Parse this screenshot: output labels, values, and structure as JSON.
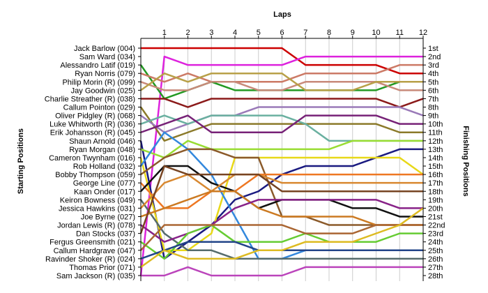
{
  "chart_data": {
    "type": "line",
    "title": "Laps",
    "ylabel_left": "Starting Positions",
    "ylabel_right": "Finishing Positions",
    "x": [
      0,
      1,
      2,
      3,
      4,
      5,
      6,
      7,
      8,
      9,
      10,
      11,
      12
    ],
    "x_tick_labels": [
      "1",
      "2",
      "3",
      "4",
      "5",
      "6",
      "7",
      "8",
      "9",
      "10",
      "11",
      "12"
    ],
    "ylim": [
      1,
      28
    ],
    "grid": "vertical",
    "drivers": [
      "Jack Barlow (004)",
      "Sam Ward (034)",
      "Alessandro Latif (019)",
      "Ryan Norris (079)",
      "Philip Morin (R) (099)",
      "Jay Goodwin (025)",
      "Charlie Streather (R) (038)",
      "Callum Pointon (029)",
      "Oliver Pidgley (R) (068)",
      "Luke Whitworth (R) (036)",
      "Erik Johansson (R) (045)",
      "Shaun Arnold (046)",
      "Ryan Morgan (048)",
      "Cameron Twynham (016)",
      "Rob Holland (032)",
      "Bobby Thompson (059)",
      "George Line (077)",
      "Kaan Onder (017)",
      "Keiron Bowness (049)",
      "Jessica Hawkins (031)",
      "Joe Byrne (027)",
      "Jordan Lewis (R) (078)",
      "Dan Stocks (037)",
      "Fergus Greensmith (021)",
      "Callum Hardgrave (047)",
      "Ravinder Shoker (R) (024)",
      "Thomas Prior (071)",
      "Sam Jackson (R) (035)"
    ],
    "finishing": [
      "1st",
      "2nd",
      "3rd",
      "4th",
      "5th",
      "6th",
      "7th",
      "8th",
      "9th",
      "10th",
      "11th",
      "12th",
      "13th",
      "14th",
      "15th",
      "16th",
      "17th",
      "18th",
      "19th",
      "20th",
      "21st",
      "22nd",
      "23rd",
      "24th",
      "25th",
      "26th",
      "27th",
      "28th"
    ],
    "series": [
      {
        "color": "#cc0000",
        "positions": [
          1,
          1,
          1,
          1,
          1,
          1,
          1,
          3,
          3,
          3,
          3,
          4,
          4
        ]
      },
      {
        "color": "#dd22dd",
        "positions": [
          28,
          2,
          3,
          3,
          3,
          3,
          3,
          2,
          2,
          2,
          2,
          2,
          2
        ]
      },
      {
        "color": "#229922",
        "positions": [
          3,
          7,
          6,
          5,
          6,
          6,
          6,
          6,
          6,
          6,
          6,
          5,
          5
        ]
      },
      {
        "color": "#cc7a66",
        "positions": [
          4,
          5,
          4,
          5,
          5,
          5,
          5,
          4,
          4,
          4,
          4,
          3,
          3
        ]
      },
      {
        "color": "#c88a7a",
        "positions": [
          5,
          6,
          6,
          5,
          5,
          6,
          6,
          5,
          5,
          5,
          5,
          6,
          6
        ]
      },
      {
        "color": "#b8a048",
        "positions": [
          6,
          4,
          5,
          4,
          4,
          4,
          4,
          6,
          6,
          6,
          5,
          5,
          5
        ]
      },
      {
        "color": "#8b1a1a",
        "positions": [
          7,
          7,
          8,
          7,
          7,
          7,
          7,
          7,
          7,
          7,
          7,
          8,
          7
        ]
      },
      {
        "color": "#8b7a2a",
        "positions": [
          8,
          12,
          11,
          10,
          10,
          10,
          10,
          10,
          10,
          10,
          10,
          11,
          11
        ]
      },
      {
        "color": "#9a7ab8",
        "positions": [
          9,
          11,
          10,
          9,
          9,
          8,
          8,
          8,
          8,
          8,
          8,
          8,
          9
        ]
      },
      {
        "color": "#6ab0a0",
        "positions": [
          10,
          9,
          10,
          9,
          9,
          9,
          9,
          10,
          12,
          12,
          12,
          12,
          12
        ]
      },
      {
        "color": "#772277",
        "positions": [
          11,
          10,
          9,
          11,
          11,
          11,
          11,
          9,
          9,
          9,
          9,
          10,
          10
        ]
      },
      {
        "color": "#1a1a80",
        "positions": [
          12,
          26,
          24,
          22,
          19,
          18,
          16,
          15,
          15,
          15,
          14,
          13,
          13
        ]
      },
      {
        "color": "#99dd33",
        "positions": [
          13,
          14,
          12,
          13,
          13,
          13,
          13,
          13,
          13,
          12,
          12,
          12,
          12
        ]
      },
      {
        "color": "#e8d818",
        "positions": [
          14,
          25,
          25,
          23,
          14,
          14,
          14,
          14,
          14,
          14,
          14,
          14,
          16
        ]
      },
      {
        "color": "#3388dd",
        "positions": [
          15,
          11,
          13,
          16,
          21,
          26,
          26,
          25,
          25,
          25,
          25,
          25,
          25
        ]
      },
      {
        "color": "#8b5a2a",
        "positions": [
          16,
          14,
          13,
          13,
          14,
          14,
          21,
          21,
          22,
          22,
          22,
          22,
          22
        ]
      },
      {
        "color": "#ee7722",
        "positions": [
          17,
          20,
          20,
          18,
          18,
          16,
          16,
          16,
          16,
          16,
          16,
          16,
          16
        ]
      },
      {
        "color": "#111111",
        "positions": [
          18,
          15,
          15,
          17,
          18,
          20,
          19,
          19,
          19,
          20,
          20,
          21,
          21
        ]
      },
      {
        "color": "#556b6b",
        "positions": [
          19,
          23,
          25,
          25,
          26,
          26,
          26,
          26,
          26,
          26,
          26,
          26,
          26
        ]
      },
      {
        "color": "#d88830",
        "positions": [
          20,
          17,
          16,
          18,
          16,
          16,
          17,
          17,
          17,
          17,
          17,
          17,
          17
        ]
      },
      {
        "color": "#cc7a22",
        "positions": [
          21,
          20,
          19,
          18,
          18,
          20,
          21,
          21,
          21,
          21,
          22,
          22,
          22
        ]
      },
      {
        "color": "#882288",
        "positions": [
          22,
          24,
          23,
          22,
          20,
          19,
          19,
          19,
          19,
          19,
          19,
          20,
          20
        ]
      },
      {
        "color": "#774422",
        "positions": [
          23,
          15,
          16,
          16,
          16,
          16,
          18,
          18,
          18,
          18,
          18,
          18,
          18
        ]
      },
      {
        "color": "#66cc33",
        "positions": [
          24,
          26,
          23,
          22,
          24,
          24,
          24,
          23,
          24,
          24,
          24,
          23,
          23
        ]
      },
      {
        "color": "#aa6633",
        "positions": [
          25,
          22,
          22,
          22,
          22,
          22,
          22,
          23,
          23,
          23,
          22,
          22,
          22
        ]
      },
      {
        "color": "#224488",
        "positions": [
          26,
          25,
          24,
          24,
          24,
          25,
          25,
          25,
          25,
          25,
          25,
          25,
          25
        ]
      },
      {
        "color": "#ddbb22",
        "positions": [
          27,
          25,
          26,
          26,
          26,
          25,
          25,
          24,
          24,
          24,
          23,
          22,
          20
        ]
      },
      {
        "color": "#bb44bb",
        "positions": [
          28,
          28,
          27,
          28,
          28,
          28,
          28,
          27,
          27,
          27,
          27,
          27,
          27
        ]
      }
    ]
  }
}
